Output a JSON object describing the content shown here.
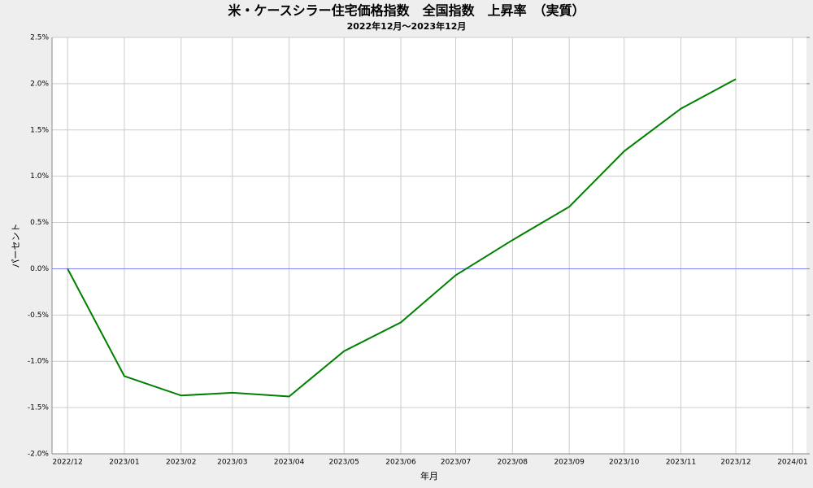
{
  "chart_data": {
    "type": "line",
    "title": "米・ケースシラー住宅価格指数　全国指数　上昇率　（実質）",
    "subtitle": "2022年12月～2023年12月",
    "x_label": "年月",
    "y_label": "パーセント",
    "categories": [
      "2022/12",
      "2023/01",
      "2023/02",
      "2023/03",
      "2023/04",
      "2023/05",
      "2023/06",
      "2023/07",
      "2023/08",
      "2023/09",
      "2023/10",
      "2023/11",
      "2023/12",
      "2024/01"
    ],
    "series": [
      {
        "color": "#008000",
        "values": [
          0,
          -1.16,
          -1.37,
          -1.34,
          -1.38,
          -0.89,
          -0.58,
          -0.07,
          0.31,
          0.67,
          1.27,
          1.73,
          2.05,
          null
        ]
      }
    ],
    "ylim": [
      -2.0,
      2.5
    ],
    "yticks": [
      {
        "value": 2.5,
        "label": "2.5%"
      },
      {
        "value": 2.0,
        "label": "2.0%"
      },
      {
        "value": 1.5,
        "label": "1.5%"
      },
      {
        "value": 1.0,
        "label": "1.0%"
      },
      {
        "value": 0.5,
        "label": "0.5%"
      },
      {
        "value": 0,
        "label": "0.0%"
      },
      {
        "value": -0.5,
        "label": "-0.5%"
      },
      {
        "value": -1.0,
        "label": "-1.0%"
      },
      {
        "value": -1.5,
        "label": "-1.5%"
      },
      {
        "value": -2.0,
        "label": "-2.0%"
      }
    ],
    "grid": true,
    "zero_line_color": "#8080ff"
  }
}
